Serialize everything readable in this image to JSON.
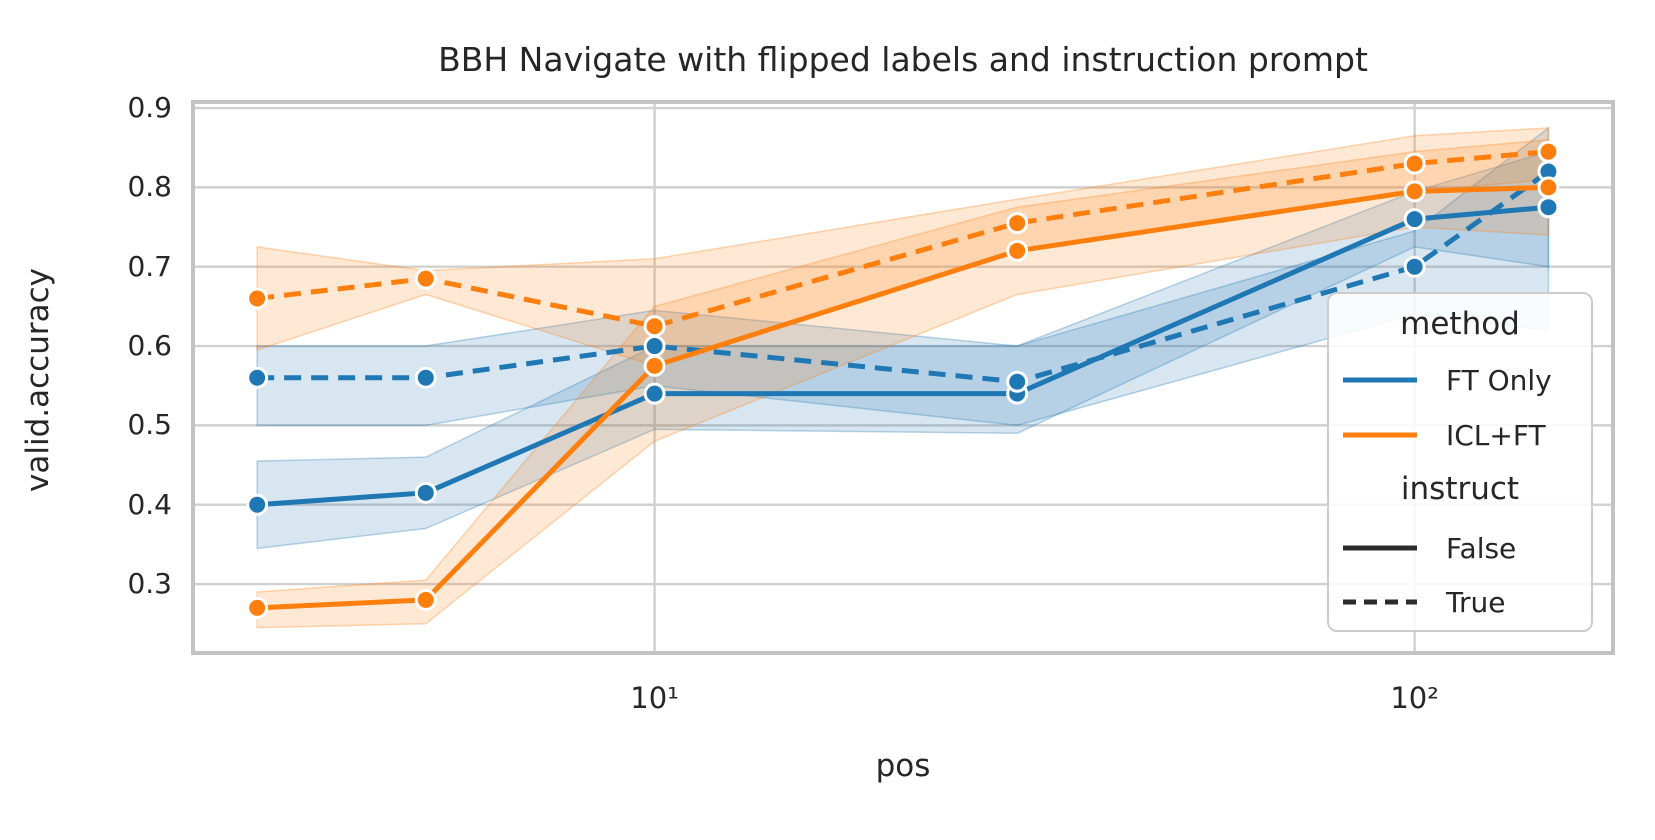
{
  "figure_title": "BBH Navigate with flipped labels and instruction prompt",
  "chart_data": {
    "type": "line",
    "title": "BBH Navigate with flipped labels and instruction prompt",
    "xlabel": "pos",
    "ylabel": "valid.accuracy",
    "x_scale": "log",
    "grid": true,
    "xlim": [
      2.47,
      182.4
    ],
    "ylim": [
      0.2131,
      0.9076
    ],
    "x": [
      3,
      5,
      10,
      30,
      100,
      150
    ],
    "x_ticks": [
      {
        "value": 10,
        "label": "10¹"
      },
      {
        "value": 100,
        "label": "10²"
      }
    ],
    "y_ticks": [
      {
        "value": 0.9,
        "label": "0.9"
      },
      {
        "value": 0.8,
        "label": "0.8"
      },
      {
        "value": 0.7,
        "label": "0.7"
      },
      {
        "value": 0.6,
        "label": "0.6"
      },
      {
        "value": 0.5,
        "label": "0.5"
      },
      {
        "value": 0.4,
        "label": "0.4"
      },
      {
        "value": 0.3,
        "label": "0.3"
      }
    ],
    "series": [
      {
        "method": "FT Only",
        "instruct": "False",
        "color": "#1f77b4",
        "line_style": "solid",
        "values": [
          0.4,
          0.415,
          0.54,
          0.54,
          0.76,
          0.775
        ],
        "band_lo": [
          0.345,
          0.37,
          0.495,
          0.49,
          0.725,
          0.7
        ],
        "band_hi": [
          0.455,
          0.46,
          0.6,
          0.6,
          0.795,
          0.845
        ]
      },
      {
        "method": "FT Only",
        "instruct": "True",
        "color": "#1f77b4",
        "line_style": "dashed",
        "values": [
          0.56,
          0.56,
          0.6,
          0.555,
          0.7,
          0.82
        ],
        "band_lo": [
          0.5,
          0.5,
          0.55,
          0.5,
          0.64,
          0.62
        ],
        "band_hi": [
          0.6,
          0.6,
          0.645,
          0.6,
          0.745,
          0.875
        ]
      },
      {
        "method": "ICL+FT",
        "instruct": "False",
        "color": "#ff7f0e",
        "line_style": "solid",
        "values": [
          0.27,
          0.28,
          0.575,
          0.72,
          0.795,
          0.8
        ],
        "band_lo": [
          0.245,
          0.25,
          0.48,
          0.665,
          0.75,
          0.74
        ],
        "band_hi": [
          0.29,
          0.305,
          0.65,
          0.775,
          0.845,
          0.86
        ]
      },
      {
        "method": "ICL+FT",
        "instruct": "True",
        "color": "#ff7f0e",
        "line_style": "dashed",
        "values": [
          0.66,
          0.685,
          0.625,
          0.755,
          0.83,
          0.845
        ],
        "band_lo": [
          0.595,
          0.665,
          0.575,
          0.72,
          0.795,
          0.81
        ],
        "band_hi": [
          0.725,
          0.695,
          0.71,
          0.785,
          0.865,
          0.875
        ]
      }
    ],
    "legend_position": "lower right inside"
  },
  "legend": {
    "sections": [
      {
        "title": "method",
        "items": [
          {
            "label": "FT Only",
            "color": "#1f77b4",
            "style": "solid"
          },
          {
            "label": "ICL+FT",
            "color": "#ff7f0e",
            "style": "solid"
          }
        ]
      },
      {
        "title": "instruct",
        "items": [
          {
            "label": "False",
            "color": "#2b2b2b",
            "style": "solid"
          },
          {
            "label": "True",
            "color": "#2b2b2b",
            "style": "dashed"
          }
        ]
      }
    ]
  },
  "colors": {
    "blue": "#1f77b4",
    "orange": "#ff7f0e",
    "text": "#262626",
    "grid": "#d0d0d0",
    "spine": "#c3c3c3"
  }
}
